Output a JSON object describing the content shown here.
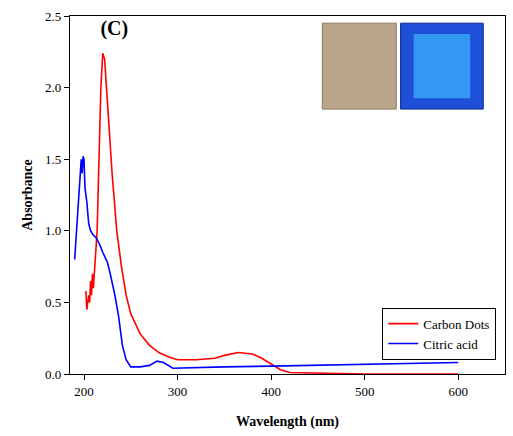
{
  "chart_data": {
    "type": "line",
    "title": "(C)",
    "x_label": "Wavelength (nm)",
    "y_label": "Absorbance",
    "xlim": [
      185,
      650
    ],
    "xticks": [
      200,
      300,
      400,
      500,
      600
    ],
    "ylim": [
      0,
      2.5
    ],
    "yticks": [
      {
        "value": 0,
        "label": "0.0"
      },
      0.5,
      {
        "value": 1,
        "label": "1.0"
      },
      1.5,
      {
        "value": 2,
        "label": "2.0"
      },
      2.5
    ],
    "legend": "bottom right",
    "grid": false,
    "series": [
      {
        "name": "Carbon Dots",
        "color": "#ff0000",
        "x": [
          202,
          203,
          205,
          206,
          207,
          208,
          209,
          210,
          212,
          214,
          216,
          218,
          220,
          222,
          225,
          230,
          235,
          240,
          245,
          250,
          260,
          270,
          280,
          290,
          300,
          320,
          340,
          350,
          365,
          380,
          390,
          400,
          410,
          420,
          450,
          500,
          600
        ],
        "values": [
          0.58,
          0.45,
          0.55,
          0.5,
          0.65,
          0.55,
          0.7,
          0.6,
          0.8,
          1.0,
          1.5,
          2.0,
          2.24,
          2.2,
          1.9,
          1.4,
          1.0,
          0.75,
          0.55,
          0.42,
          0.28,
          0.2,
          0.15,
          0.12,
          0.1,
          0.1,
          0.11,
          0.13,
          0.15,
          0.14,
          0.11,
          0.07,
          0.03,
          0.01,
          0.005,
          0,
          0
        ]
      },
      {
        "name": "Citric acid",
        "color": "#0000ff",
        "x": [
          190,
          193,
          195,
          197,
          198,
          199,
          200,
          201,
          203,
          205,
          207,
          210,
          213,
          217,
          220,
          225,
          228,
          233,
          237,
          241,
          245,
          250,
          260,
          270,
          278,
          285,
          295,
          320,
          350,
          400,
          450,
          500,
          550,
          600
        ],
        "values": [
          0.8,
          1.1,
          1.3,
          1.5,
          1.4,
          1.52,
          1.5,
          1.3,
          1.2,
          1.05,
          1.0,
          0.97,
          0.95,
          0.9,
          0.85,
          0.78,
          0.7,
          0.55,
          0.4,
          0.2,
          0.1,
          0.05,
          0.05,
          0.06,
          0.09,
          0.08,
          0.04,
          0.045,
          0.05,
          0.055,
          0.06,
          0.065,
          0.07,
          0.08
        ]
      }
    ]
  }
}
